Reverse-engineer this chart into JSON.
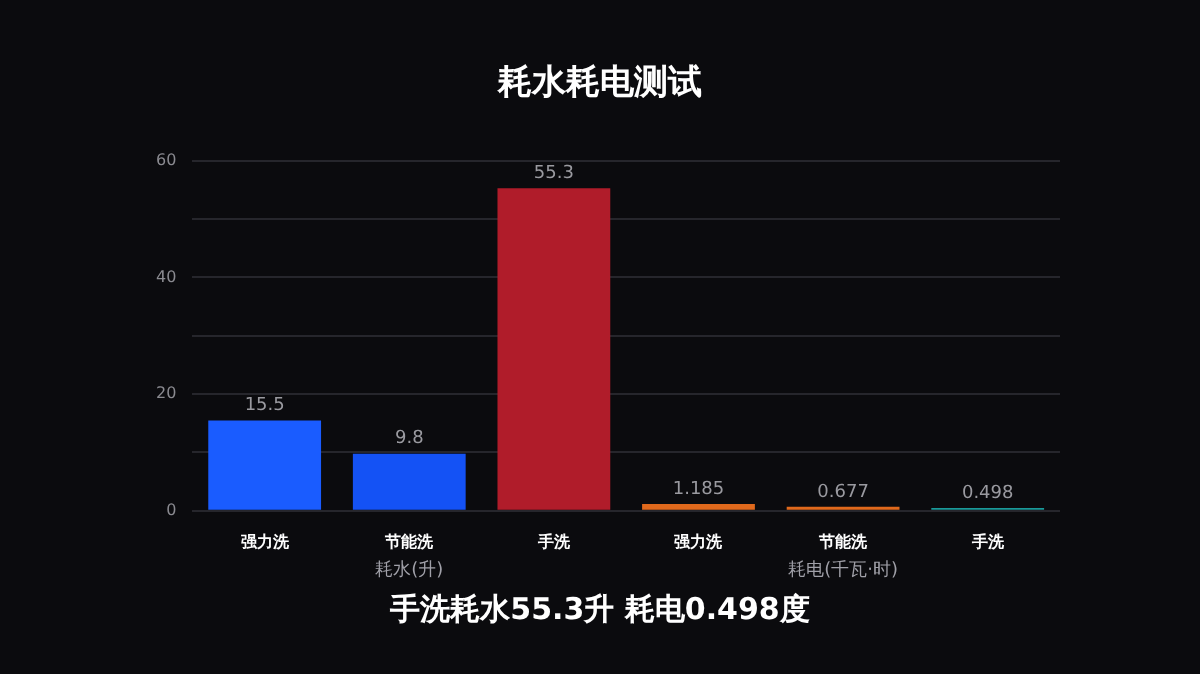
{
  "chart_data": {
    "type": "bar",
    "title": "耗水耗电测试",
    "categories": [
      "强力洗",
      "节能洗",
      "手洗",
      "强力洗",
      "节能洗",
      "手洗"
    ],
    "values": [
      15.5,
      9.8,
      55.3,
      1.185,
      0.677,
      0.498
    ],
    "colors": [
      "#1a5cff",
      "#1452f5",
      "#b01c2a",
      "#e0691c",
      "#e0691c",
      "#1a9a9a"
    ],
    "ylim": [
      0,
      60
    ],
    "yticks": [
      0,
      {
        "value": 10,
        "label": null
      },
      20,
      {
        "value": 30,
        "label": null
      },
      40,
      {
        "value": 50,
        "label": null
      },
      60
    ],
    "grid": "y",
    "data_labels": true,
    "annotations": [
      "耗水(升)",
      "耗电(千瓦·时)",
      "手洗耗水55.3升 耗电0.498度"
    ]
  }
}
